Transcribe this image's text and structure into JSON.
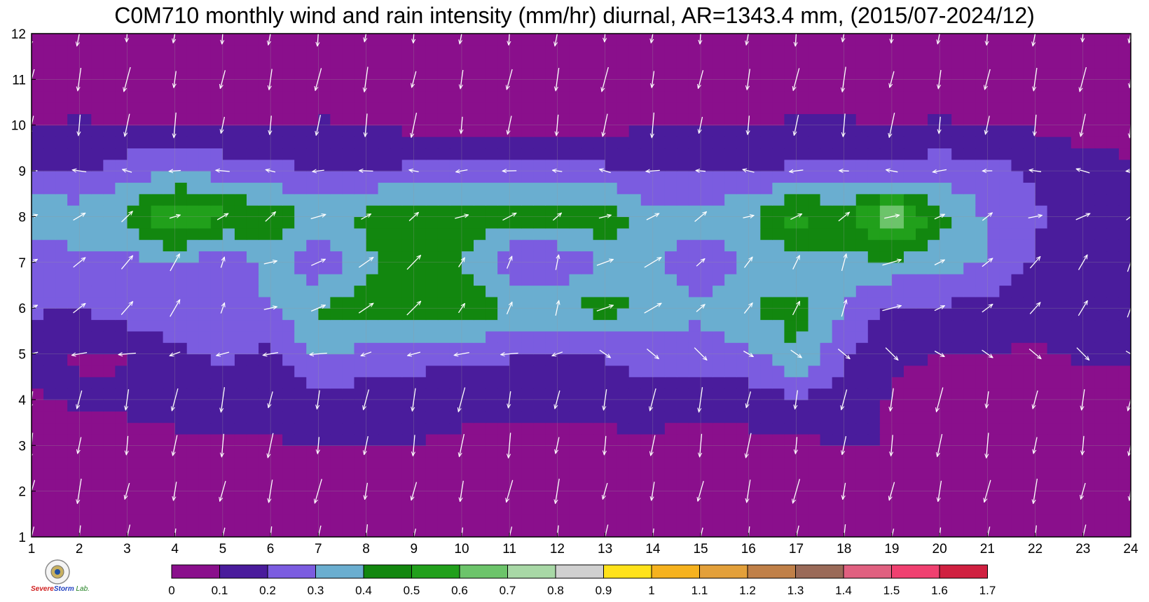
{
  "title": "C0M710 monthly wind and rain intensity (mm/hr) diurnal, AR=1343.4 mm, (2015/07-2024/12)",
  "logo": {
    "name": "Severe Storm Lab",
    "line1": "Severe",
    "line2": "Storm",
    "line3": "Lab."
  },
  "colorbar": {
    "labels": [
      "0",
      "0.1",
      "0.2",
      "0.3",
      "0.4",
      "0.5",
      "0.6",
      "0.7",
      "0.8",
      "0.9",
      "1",
      "1.1",
      "1.2",
      "1.3",
      "1.4",
      "1.5",
      "1.6",
      "1.7"
    ],
    "colors": [
      "#8a0f8c",
      "#4a1c9c",
      "#7b5ce0",
      "#6aaed0",
      "#12870f",
      "#21a01b",
      "#6cc46a",
      "#a8d8a6",
      "#d0d0d0",
      "#ffe21a",
      "#f6b21e",
      "#e3a03a",
      "#c08048",
      "#9a6a58",
      "#e06080",
      "#f04070",
      "#d02040"
    ]
  },
  "chart_data": {
    "type": "heatmap",
    "title": "C0M710 monthly wind and rain intensity (mm/hr) diurnal, AR=1343.4 mm, (2015/07-2024/12)",
    "xlabel": "",
    "ylabel": "",
    "x_ticks": [
      "1",
      "2",
      "3",
      "4",
      "5",
      "6",
      "7",
      "8",
      "9",
      "10",
      "11",
      "12",
      "13",
      "14",
      "15",
      "16",
      "17",
      "18",
      "19",
      "20",
      "21",
      "22",
      "23",
      "24"
    ],
    "y_ticks": [
      "1",
      "2",
      "3",
      "4",
      "5",
      "6",
      "7",
      "8",
      "9",
      "10",
      "11",
      "12"
    ],
    "xlim": [
      1,
      24
    ],
    "ylim": [
      1,
      12
    ],
    "levels": [
      0,
      0.1,
      0.2,
      0.3,
      0.4,
      0.5,
      0.6,
      0.7,
      0.8,
      0.9,
      1,
      1.1,
      1.2,
      1.3,
      1.4,
      1.5,
      1.6,
      1.7
    ],
    "hours": [
      1,
      2,
      3,
      4,
      5,
      6,
      7,
      8,
      9,
      10,
      11,
      12,
      13,
      14,
      15,
      16,
      17,
      18,
      19,
      20,
      21,
      22,
      23,
      24
    ],
    "months": [
      1,
      2,
      3,
      4,
      5,
      6,
      7,
      8,
      9,
      10,
      11,
      12
    ],
    "rain_intensity": [
      [
        0.02,
        0.03,
        0.03,
        0.03,
        0.03,
        0.04,
        0.05,
        0.05,
        0.06,
        0.07,
        0.06,
        0.06,
        0.06,
        0.05,
        0.05,
        0.05,
        0.06,
        0.06,
        0.05,
        0.05,
        0.04,
        0.04,
        0.03,
        0.03
      ],
      [
        0.03,
        0.03,
        0.04,
        0.04,
        0.04,
        0.04,
        0.05,
        0.06,
        0.06,
        0.06,
        0.06,
        0.06,
        0.06,
        0.06,
        0.06,
        0.06,
        0.06,
        0.06,
        0.05,
        0.05,
        0.04,
        0.04,
        0.04,
        0.03
      ],
      [
        0.05,
        0.05,
        0.06,
        0.07,
        0.08,
        0.09,
        0.1,
        0.1,
        0.1,
        0.08,
        0.08,
        0.08,
        0.08,
        0.08,
        0.07,
        0.07,
        0.08,
        0.1,
        0.1,
        0.08,
        0.1,
        0.08,
        0.06,
        0.06
      ],
      [
        0.09,
        0.11,
        0.12,
        0.15,
        0.14,
        0.13,
        0.17,
        0.15,
        0.14,
        0.13,
        0.13,
        0.12,
        0.13,
        0.14,
        0.13,
        0.15,
        0.18,
        0.15,
        0.09,
        0.08,
        0.08,
        0.07,
        0.06,
        0.06
      ],
      [
        0.16,
        0.09,
        0.09,
        0.18,
        0.22,
        0.18,
        0.31,
        0.27,
        0.25,
        0.21,
        0.21,
        0.19,
        0.21,
        0.26,
        0.24,
        0.27,
        0.4,
        0.22,
        0.11,
        0.1,
        0.1,
        0.09,
        0.11,
        0.12
      ],
      [
        0.21,
        0.2,
        0.27,
        0.28,
        0.31,
        0.29,
        0.42,
        0.44,
        0.46,
        0.48,
        0.41,
        0.39,
        0.45,
        0.36,
        0.33,
        0.4,
        0.44,
        0.29,
        0.19,
        0.19,
        0.16,
        0.12,
        0.13,
        0.14
      ],
      [
        0.22,
        0.27,
        0.27,
        0.3,
        0.19,
        0.35,
        0.22,
        0.38,
        0.42,
        0.4,
        0.21,
        0.18,
        0.33,
        0.32,
        0.21,
        0.31,
        0.34,
        0.38,
        0.37,
        0.33,
        0.31,
        0.18,
        0.14,
        0.11
      ],
      [
        0.4,
        0.36,
        0.42,
        0.64,
        0.52,
        0.46,
        0.38,
        0.42,
        0.51,
        0.49,
        0.43,
        0.48,
        0.46,
        0.34,
        0.35,
        0.39,
        0.55,
        0.45,
        0.71,
        0.43,
        0.28,
        0.22,
        0.17,
        0.14
      ],
      [
        0.18,
        0.18,
        0.27,
        0.27,
        0.26,
        0.22,
        0.21,
        0.21,
        0.22,
        0.22,
        0.22,
        0.23,
        0.22,
        0.19,
        0.18,
        0.19,
        0.22,
        0.25,
        0.23,
        0.26,
        0.24,
        0.18,
        0.12,
        0.11
      ],
      [
        0.09,
        0.11,
        0.09,
        0.09,
        0.1,
        0.08,
        0.11,
        0.09,
        0.08,
        0.08,
        0.07,
        0.08,
        0.08,
        0.09,
        0.09,
        0.09,
        0.11,
        0.11,
        0.1,
        0.11,
        0.1,
        0.09,
        0.08,
        0.08
      ],
      [
        0.05,
        0.05,
        0.05,
        0.05,
        0.05,
        0.05,
        0.05,
        0.05,
        0.05,
        0.05,
        0.05,
        0.05,
        0.05,
        0.05,
        0.05,
        0.05,
        0.05,
        0.05,
        0.05,
        0.05,
        0.05,
        0.05,
        0.05,
        0.05
      ],
      [
        0.03,
        0.03,
        0.03,
        0.03,
        0.03,
        0.03,
        0.03,
        0.03,
        0.03,
        0.03,
        0.03,
        0.03,
        0.03,
        0.03,
        0.03,
        0.03,
        0.03,
        0.03,
        0.03,
        0.03,
        0.03,
        0.03,
        0.03,
        0.03
      ]
    ],
    "wind_direction_note": "arrows: months 1-4 and 10-12 point roughly south (northerly wind); months 5-8 point north/east-northeast"
  }
}
